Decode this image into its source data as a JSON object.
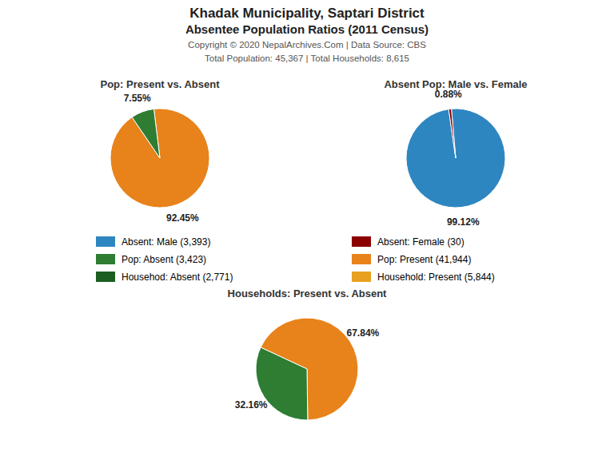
{
  "title": "Khadak Municipality, Saptari District",
  "subtitle": "Absentee Population Ratios (2011 Census)",
  "annotations": [
    "Copyright © 2020 NepalArchives.Com | Data Source: CBS",
    "Total Population: 45,367 | Total Households: 8,615"
  ],
  "chart_data": [
    {
      "type": "pie",
      "title": "Pop: Present vs. Absent",
      "values": [
        92.45,
        7.55
      ],
      "value_labels": [
        "92.45%",
        "7.55%"
      ],
      "colors": [
        "#E8821A",
        "#2E7D32"
      ],
      "data_labels": true
    },
    {
      "type": "pie",
      "title": "Absent Pop: Male vs. Female",
      "values": [
        99.12,
        0.88
      ],
      "value_labels": [
        "99.12%",
        "0.88%"
      ],
      "colors": [
        "#2E86C1",
        "#8B0000"
      ],
      "data_labels": true
    },
    {
      "type": "pie",
      "title": "Households: Present vs. Absent",
      "values": [
        67.84,
        32.16
      ],
      "value_labels": [
        "67.84%",
        "32.16%"
      ],
      "colors": [
        "#E8821A",
        "#2E7D32"
      ],
      "data_labels": true
    }
  ],
  "legend_items": [
    {
      "label": "Absent: Male (3,393)",
      "color": "#2E86C1"
    },
    {
      "label": "Absent: Female (30)",
      "color": "#8B0000"
    },
    {
      "label": "Pop: Absent (3,423)",
      "color": "#2E7D32"
    },
    {
      "label": "Pop: Present (41,944)",
      "color": "#E8821A"
    },
    {
      "label": "Househod: Absent (2,771)",
      "color": "#1B5E20"
    },
    {
      "label": "Household: Present (5,844)",
      "color": "#E8A020"
    }
  ]
}
